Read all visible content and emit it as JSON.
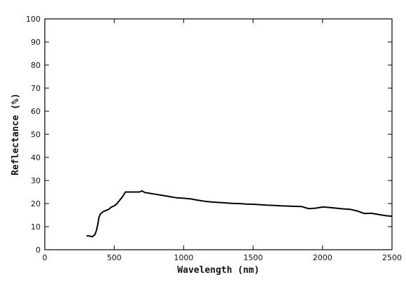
{
  "chart_data": {
    "type": "line",
    "title": "",
    "xlabel": "Wavelength (nm)",
    "ylabel": "Reflectance (%)",
    "xlim": [
      0,
      2500
    ],
    "ylim": [
      0,
      100
    ],
    "grid": false,
    "legend": "none",
    "x_ticks": [
      0,
      500,
      1000,
      1500,
      2000,
      2500
    ],
    "x_tick_labels": [
      "0",
      "500",
      "1000",
      "1500",
      "2000",
      "2500"
    ],
    "y_ticks": [
      0,
      10,
      20,
      30,
      40,
      50,
      60,
      70,
      80,
      90,
      100
    ],
    "y_tick_labels": [
      "0",
      "10",
      "20",
      "30",
      "40",
      "50",
      "60",
      "70",
      "80",
      "90",
      "100"
    ],
    "line_color": "#000000",
    "series": [
      {
        "x": [
          300,
          320,
          340,
          350,
          360,
          370,
          380,
          390,
          400,
          420,
          440,
          460,
          480,
          500,
          520,
          540,
          560,
          580,
          600,
          620,
          650,
          680,
          700,
          720,
          750,
          800,
          850,
          900,
          950,
          1000,
          1050,
          1100,
          1150,
          1200,
          1250,
          1300,
          1350,
          1400,
          1450,
          1500,
          1550,
          1600,
          1650,
          1700,
          1750,
          1800,
          1850,
          1900,
          1950,
          2000,
          2050,
          2100,
          2150,
          2200,
          2250,
          2300,
          2350,
          2400,
          2450,
          2500
        ],
        "y": [
          6.0,
          6.0,
          5.6,
          6.0,
          6.5,
          8.0,
          10.5,
          14.0,
          15.5,
          16.5,
          17.0,
          17.5,
          18.5,
          19.0,
          20.0,
          21.5,
          23.0,
          25.0,
          25.0,
          25.0,
          25.0,
          25.0,
          25.5,
          24.8,
          24.5,
          24.0,
          23.5,
          23.0,
          22.5,
          22.3,
          22.0,
          21.5,
          21.0,
          20.7,
          20.5,
          20.3,
          20.1,
          20.0,
          19.8,
          19.7,
          19.5,
          19.3,
          19.2,
          19.0,
          18.9,
          18.8,
          18.7,
          17.8,
          18.0,
          18.5,
          18.3,
          18.0,
          17.7,
          17.5,
          16.8,
          15.7,
          15.8,
          15.3,
          14.8,
          14.5
        ]
      }
    ]
  }
}
